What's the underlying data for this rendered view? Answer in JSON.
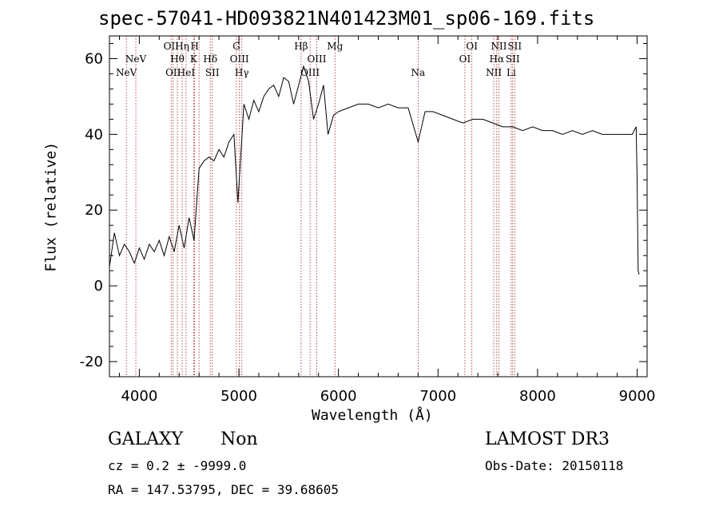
{
  "chart_data": {
    "type": "line",
    "title": "spec-57041-HD093821N401423M01_sp06-169.fits",
    "xlabel": "Wavelength (Å)",
    "ylabel": "Flux (relative)",
    "xlim": [
      3700,
      9100
    ],
    "ylim": [
      -24,
      66
    ],
    "xticks": [
      4000,
      5000,
      6000,
      7000,
      8000,
      9000
    ],
    "yticks": [
      -20,
      0,
      20,
      40,
      60
    ],
    "grid": false,
    "series": [
      {
        "x": [
          3700,
          3750,
          3800,
          3850,
          3900,
          3950,
          4000,
          4050,
          4100,
          4150,
          4200,
          4250,
          4300,
          4350,
          4400,
          4450,
          4500,
          4550,
          4600,
          4650,
          4700,
          4750,
          4800,
          4850,
          4900,
          4950,
          4990,
          5050,
          5100,
          5150,
          5200,
          5250,
          5300,
          5350,
          5400,
          5450,
          5500,
          5550,
          5600,
          5650,
          5700,
          5750,
          5800,
          5850,
          5895,
          5950,
          6000,
          6100,
          6200,
          6300,
          6400,
          6500,
          6600,
          6700,
          6800,
          6870,
          6950,
          7050,
          7150,
          7250,
          7350,
          7450,
          7550,
          7650,
          7750,
          7850,
          7950,
          8050,
          8150,
          8250,
          8350,
          8450,
          8550,
          8650,
          8750,
          8850,
          8950,
          8990,
          9000,
          9010,
          9020
        ],
        "values": [
          5,
          14,
          8,
          11,
          9,
          6,
          10,
          7,
          11,
          9,
          12,
          8,
          13,
          9,
          16,
          10,
          18,
          12,
          31,
          33,
          34,
          33,
          36,
          34,
          38,
          40,
          22,
          48,
          44,
          49,
          46,
          50,
          52,
          53,
          50,
          55,
          54,
          48,
          53,
          58,
          54,
          44,
          48,
          53,
          40,
          45,
          46,
          47,
          48,
          48,
          47,
          48,
          47,
          47,
          38,
          46,
          46,
          45,
          44,
          43,
          44,
          44,
          43,
          42,
          42,
          41,
          42,
          41,
          41,
          40,
          41,
          40,
          41,
          40,
          40,
          40,
          40,
          42,
          28,
          4,
          3
        ]
      }
    ],
    "lines": [
      {
        "x": 3870,
        "label": "NeV",
        "row": "bot"
      },
      {
        "x": 3965,
        "label": "NeV",
        "row": "mid"
      },
      {
        "x": 4320,
        "label": "OII",
        "row": "top"
      },
      {
        "x": 4340,
        "label": "OII",
        "row": "bot"
      },
      {
        "x": 4382,
        "label": "Hθ",
        "row": "mid"
      },
      {
        "x": 4430,
        "label": "Hη",
        "row": "top"
      },
      {
        "x": 4470,
        "label": "HeI",
        "row": "bot"
      },
      {
        "x": 4545,
        "label": "K",
        "row": "mid"
      },
      {
        "x": 4555,
        "label": "H",
        "row": "top"
      },
      {
        "x": 4600,
        "label": "",
        "row": "none"
      },
      {
        "x": 4713,
        "label": "Hδ",
        "row": "mid"
      },
      {
        "x": 4733,
        "label": "SII",
        "row": "bot"
      },
      {
        "x": 4975,
        "label": "G",
        "row": "top"
      },
      {
        "x": 5005,
        "label": "OIII",
        "row": "mid"
      },
      {
        "x": 5030,
        "label": "Hγ",
        "row": "bot"
      },
      {
        "x": 5625,
        "label": "Hβ",
        "row": "top"
      },
      {
        "x": 5715,
        "label": "OIII",
        "row": "bot"
      },
      {
        "x": 5782,
        "label": "OIII",
        "row": "mid"
      },
      {
        "x": 5965,
        "label": "Mg",
        "row": "top"
      },
      {
        "x": 6800,
        "label": "Na",
        "row": "bot"
      },
      {
        "x": 7270,
        "label": "OI",
        "row": "mid"
      },
      {
        "x": 7340,
        "label": "OI",
        "row": "top"
      },
      {
        "x": 7560,
        "label": "NII",
        "row": "bot"
      },
      {
        "x": 7590,
        "label": "Hα",
        "row": "mid"
      },
      {
        "x": 7612,
        "label": "NII",
        "row": "top"
      },
      {
        "x": 7735,
        "label": "Li",
        "row": "bot"
      },
      {
        "x": 7750,
        "label": "SII",
        "row": "mid"
      },
      {
        "x": 7770,
        "label": "SII",
        "row": "top"
      }
    ]
  },
  "info": {
    "classification": "GALAXY",
    "subclass": "Non",
    "survey": "LAMOST DR3",
    "redshift": "cz = 0.2 ± -9999.0",
    "obs_date": "Obs-Date: 20150118",
    "coords": "RA = 147.53795, DEC =  39.68605"
  },
  "colors": {
    "line_marker": "#aa2222",
    "spectrum": "#000000"
  }
}
